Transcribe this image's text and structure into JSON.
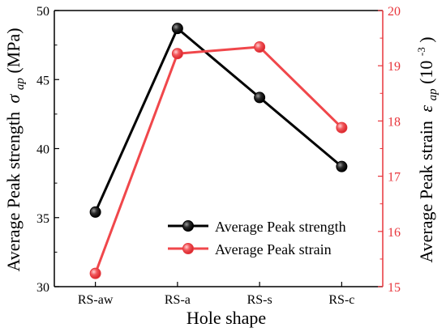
{
  "chart_data": {
    "type": "line",
    "categories": [
      "RS-aw",
      "RS-a",
      "RS-s",
      "RS-c"
    ],
    "xlabel": "Hole shape",
    "y_left": {
      "label_prefix": "Average Peak strength",
      "symbol": "σ",
      "subscript": "ap",
      "unit": "(MPa)",
      "range": [
        30,
        50
      ],
      "ticks": [
        "30",
        "35",
        "40",
        "45",
        "50"
      ],
      "color": "#000000"
    },
    "y_right": {
      "label_prefix": "Average Peak strain",
      "symbol": "ε",
      "subscript": "ap",
      "unit_open": "(10",
      "unit_exp": "-3",
      "unit_close": ")",
      "range": [
        15,
        20
      ],
      "ticks": [
        "15",
        "16",
        "17",
        "18",
        "19",
        "20"
      ],
      "color": "#e8353b"
    },
    "series": [
      {
        "name": "Average Peak strength",
        "axis": "left",
        "color": "#000000",
        "values": [
          35.4,
          48.7,
          43.7,
          38.7
        ]
      },
      {
        "name": "Average Peak strain",
        "axis": "right",
        "color": "#f0474b",
        "values": [
          15.24,
          19.22,
          19.34,
          17.88
        ]
      }
    ],
    "legend_position": "bottom-right",
    "grid": false
  }
}
